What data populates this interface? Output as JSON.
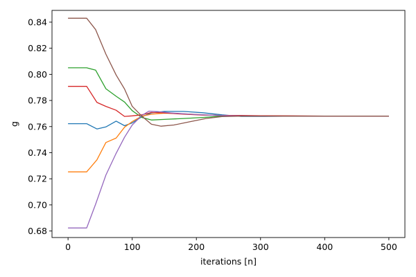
{
  "chart_data": {
    "type": "line",
    "title": "",
    "xlabel": "iterations [n]",
    "ylabel": "g",
    "xlim": [
      -25,
      525
    ],
    "ylim": [
      0.675,
      0.849
    ],
    "xticks": [
      0,
      100,
      200,
      300,
      400,
      500
    ],
    "yticks": [
      0.68,
      0.7,
      0.72,
      0.74,
      0.76,
      0.78,
      0.8,
      0.82,
      0.84
    ],
    "grid": false,
    "legend": "none",
    "series": [
      {
        "name": "series-blue",
        "color": "#1f77b4",
        "x": [
          0,
          29,
          45,
          59,
          75,
          88,
          100,
          115,
          130,
          150,
          180,
          210,
          240,
          270,
          300,
          350,
          400,
          450,
          500
        ],
        "y": [
          0.7622,
          0.7622,
          0.7582,
          0.7597,
          0.7642,
          0.7607,
          0.7628,
          0.7675,
          0.7705,
          0.7716,
          0.7716,
          0.7706,
          0.769,
          0.7678,
          0.7678,
          0.768,
          0.768,
          0.768,
          0.768
        ]
      },
      {
        "name": "series-orange",
        "color": "#ff7f0e",
        "x": [
          0,
          29,
          45,
          59,
          75,
          88,
          100,
          115,
          130,
          150,
          180,
          210,
          240,
          270,
          300,
          350,
          400,
          450,
          500
        ],
        "y": [
          0.7253,
          0.7253,
          0.7345,
          0.7478,
          0.7512,
          0.7595,
          0.7638,
          0.768,
          0.7695,
          0.7702,
          0.7698,
          0.769,
          0.7684,
          0.7682,
          0.7682,
          0.768,
          0.768,
          0.768,
          0.768
        ]
      },
      {
        "name": "series-green",
        "color": "#2ca02c",
        "x": [
          0,
          29,
          43,
          59,
          75,
          88,
          100,
          115,
          130,
          150,
          180,
          210,
          240,
          270,
          300,
          350,
          400,
          450,
          500
        ],
        "y": [
          0.805,
          0.805,
          0.8032,
          0.789,
          0.7832,
          0.7788,
          0.7722,
          0.767,
          0.765,
          0.7655,
          0.7662,
          0.767,
          0.768,
          0.7683,
          0.7682,
          0.768,
          0.768,
          0.768,
          0.768
        ]
      },
      {
        "name": "series-red",
        "color": "#d62728",
        "x": [
          0,
          29,
          45,
          59,
          75,
          88,
          100,
          115,
          130,
          150,
          180,
          210,
          240,
          270,
          300,
          350,
          400,
          450,
          500
        ],
        "y": [
          0.7908,
          0.7908,
          0.7785,
          0.7755,
          0.7725,
          0.7678,
          0.7682,
          0.769,
          0.7708,
          0.7705,
          0.7695,
          0.7688,
          0.7686,
          0.7685,
          0.7683,
          0.7682,
          0.768,
          0.768,
          0.768
        ]
      },
      {
        "name": "series-purple",
        "color": "#9467bd",
        "x": [
          0,
          29,
          43,
          59,
          75,
          88,
          100,
          115,
          126,
          140,
          160,
          190,
          220,
          250,
          300,
          350,
          400,
          450,
          500
        ],
        "y": [
          0.6823,
          0.6823,
          0.7005,
          0.7228,
          0.7395,
          0.7518,
          0.7612,
          0.7685,
          0.7718,
          0.7715,
          0.7705,
          0.7695,
          0.7688,
          0.7683,
          0.768,
          0.768,
          0.768,
          0.768,
          0.768
        ]
      },
      {
        "name": "series-brown",
        "color": "#8c564b",
        "x": [
          0,
          29,
          43,
          59,
          75,
          88,
          100,
          115,
          130,
          145,
          165,
          190,
          215,
          240,
          270,
          300,
          350,
          400,
          450,
          500
        ],
        "y": [
          0.843,
          0.843,
          0.8343,
          0.8155,
          0.7995,
          0.7888,
          0.7755,
          0.768,
          0.7618,
          0.7603,
          0.7612,
          0.7637,
          0.7662,
          0.7676,
          0.768,
          0.768,
          0.768,
          0.768,
          0.768,
          0.768
        ]
      }
    ]
  }
}
